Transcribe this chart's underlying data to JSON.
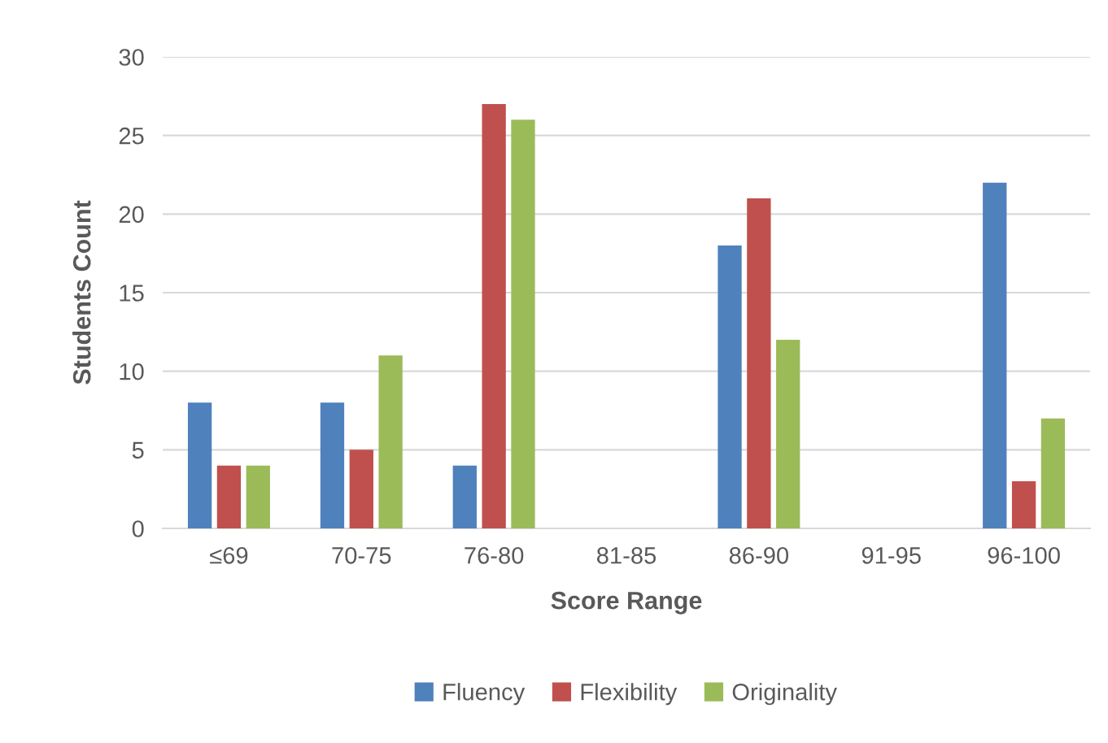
{
  "chart_data": {
    "type": "bar",
    "xlabel": "Score Range",
    "ylabel": "Students Count",
    "categories": [
      "≤69",
      "70-75",
      "76-80",
      "81-85",
      "86-90",
      "91-95",
      "96-100"
    ],
    "series": [
      {
        "name": "Fluency",
        "color": "#4f81bd",
        "values": [
          8,
          8,
          4,
          0,
          18,
          0,
          22
        ]
      },
      {
        "name": "Flexibility",
        "color": "#c0504d",
        "values": [
          4,
          5,
          27,
          0,
          21,
          0,
          3
        ]
      },
      {
        "name": "Originality",
        "color": "#9bbb59",
        "values": [
          4,
          11,
          26,
          0,
          12,
          0,
          7
        ]
      }
    ],
    "ylim": [
      0,
      30
    ],
    "yticks": [
      0,
      5,
      10,
      15,
      20,
      25,
      30
    ],
    "grid": "y",
    "legend": "bottom"
  }
}
